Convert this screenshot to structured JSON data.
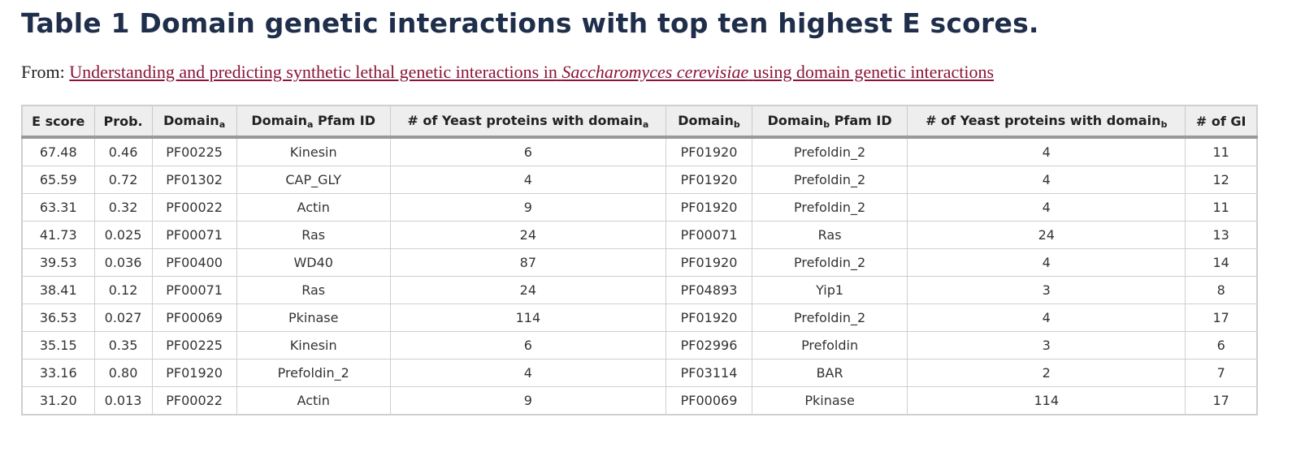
{
  "title": "Table 1 Domain genetic interactions with top ten highest E scores.",
  "source": {
    "prefix": "From:",
    "link_before_italic": "Understanding and predicting synthetic lethal genetic interactions in",
    "link_italic": "Saccharomyces cerevisiae",
    "link_after_italic": "using domain genetic interactions"
  },
  "table": {
    "headers": [
      {
        "text": "E score",
        "sub": ""
      },
      {
        "text": "Prob.",
        "sub": ""
      },
      {
        "text": "Domain",
        "sub": "a"
      },
      {
        "text": "Domain",
        "sub": "a",
        "after": " Pfam ID"
      },
      {
        "text": "# of Yeast proteins with domain",
        "sub": "a"
      },
      {
        "text": "Domain",
        "sub": "b"
      },
      {
        "text": "Domain",
        "sub": "b",
        "after": " Pfam ID"
      },
      {
        "text": "# of Yeast proteins with domain",
        "sub": "b"
      },
      {
        "text": "# of GI",
        "sub": ""
      }
    ],
    "rows": [
      [
        "67.48",
        "0.46",
        "PF00225",
        "Kinesin",
        "6",
        "PF01920",
        "Prefoldin_2",
        "4",
        "11"
      ],
      [
        "65.59",
        "0.72",
        "PF01302",
        "CAP_GLY",
        "4",
        "PF01920",
        "Prefoldin_2",
        "4",
        "12"
      ],
      [
        "63.31",
        "0.32",
        "PF00022",
        "Actin",
        "9",
        "PF01920",
        "Prefoldin_2",
        "4",
        "11"
      ],
      [
        "41.73",
        "0.025",
        "PF00071",
        "Ras",
        "24",
        "PF00071",
        "Ras",
        "24",
        "13"
      ],
      [
        "39.53",
        "0.036",
        "PF00400",
        "WD40",
        "87",
        "PF01920",
        "Prefoldin_2",
        "4",
        "14"
      ],
      [
        "38.41",
        "0.12",
        "PF00071",
        "Ras",
        "24",
        "PF04893",
        "Yip1",
        "3",
        "8"
      ],
      [
        "36.53",
        "0.027",
        "PF00069",
        "Pkinase",
        "114",
        "PF01920",
        "Prefoldin_2",
        "4",
        "17"
      ],
      [
        "35.15",
        "0.35",
        "PF00225",
        "Kinesin",
        "6",
        "PF02996",
        "Prefoldin",
        "3",
        "6"
      ],
      [
        "33.16",
        "0.80",
        "PF01920",
        "Prefoldin_2",
        "4",
        "PF03114",
        "BAR",
        "2",
        "7"
      ],
      [
        "31.20",
        "0.013",
        "PF00022",
        "Actin",
        "9",
        "PF00069",
        "Pkinase",
        "114",
        "17"
      ]
    ]
  }
}
